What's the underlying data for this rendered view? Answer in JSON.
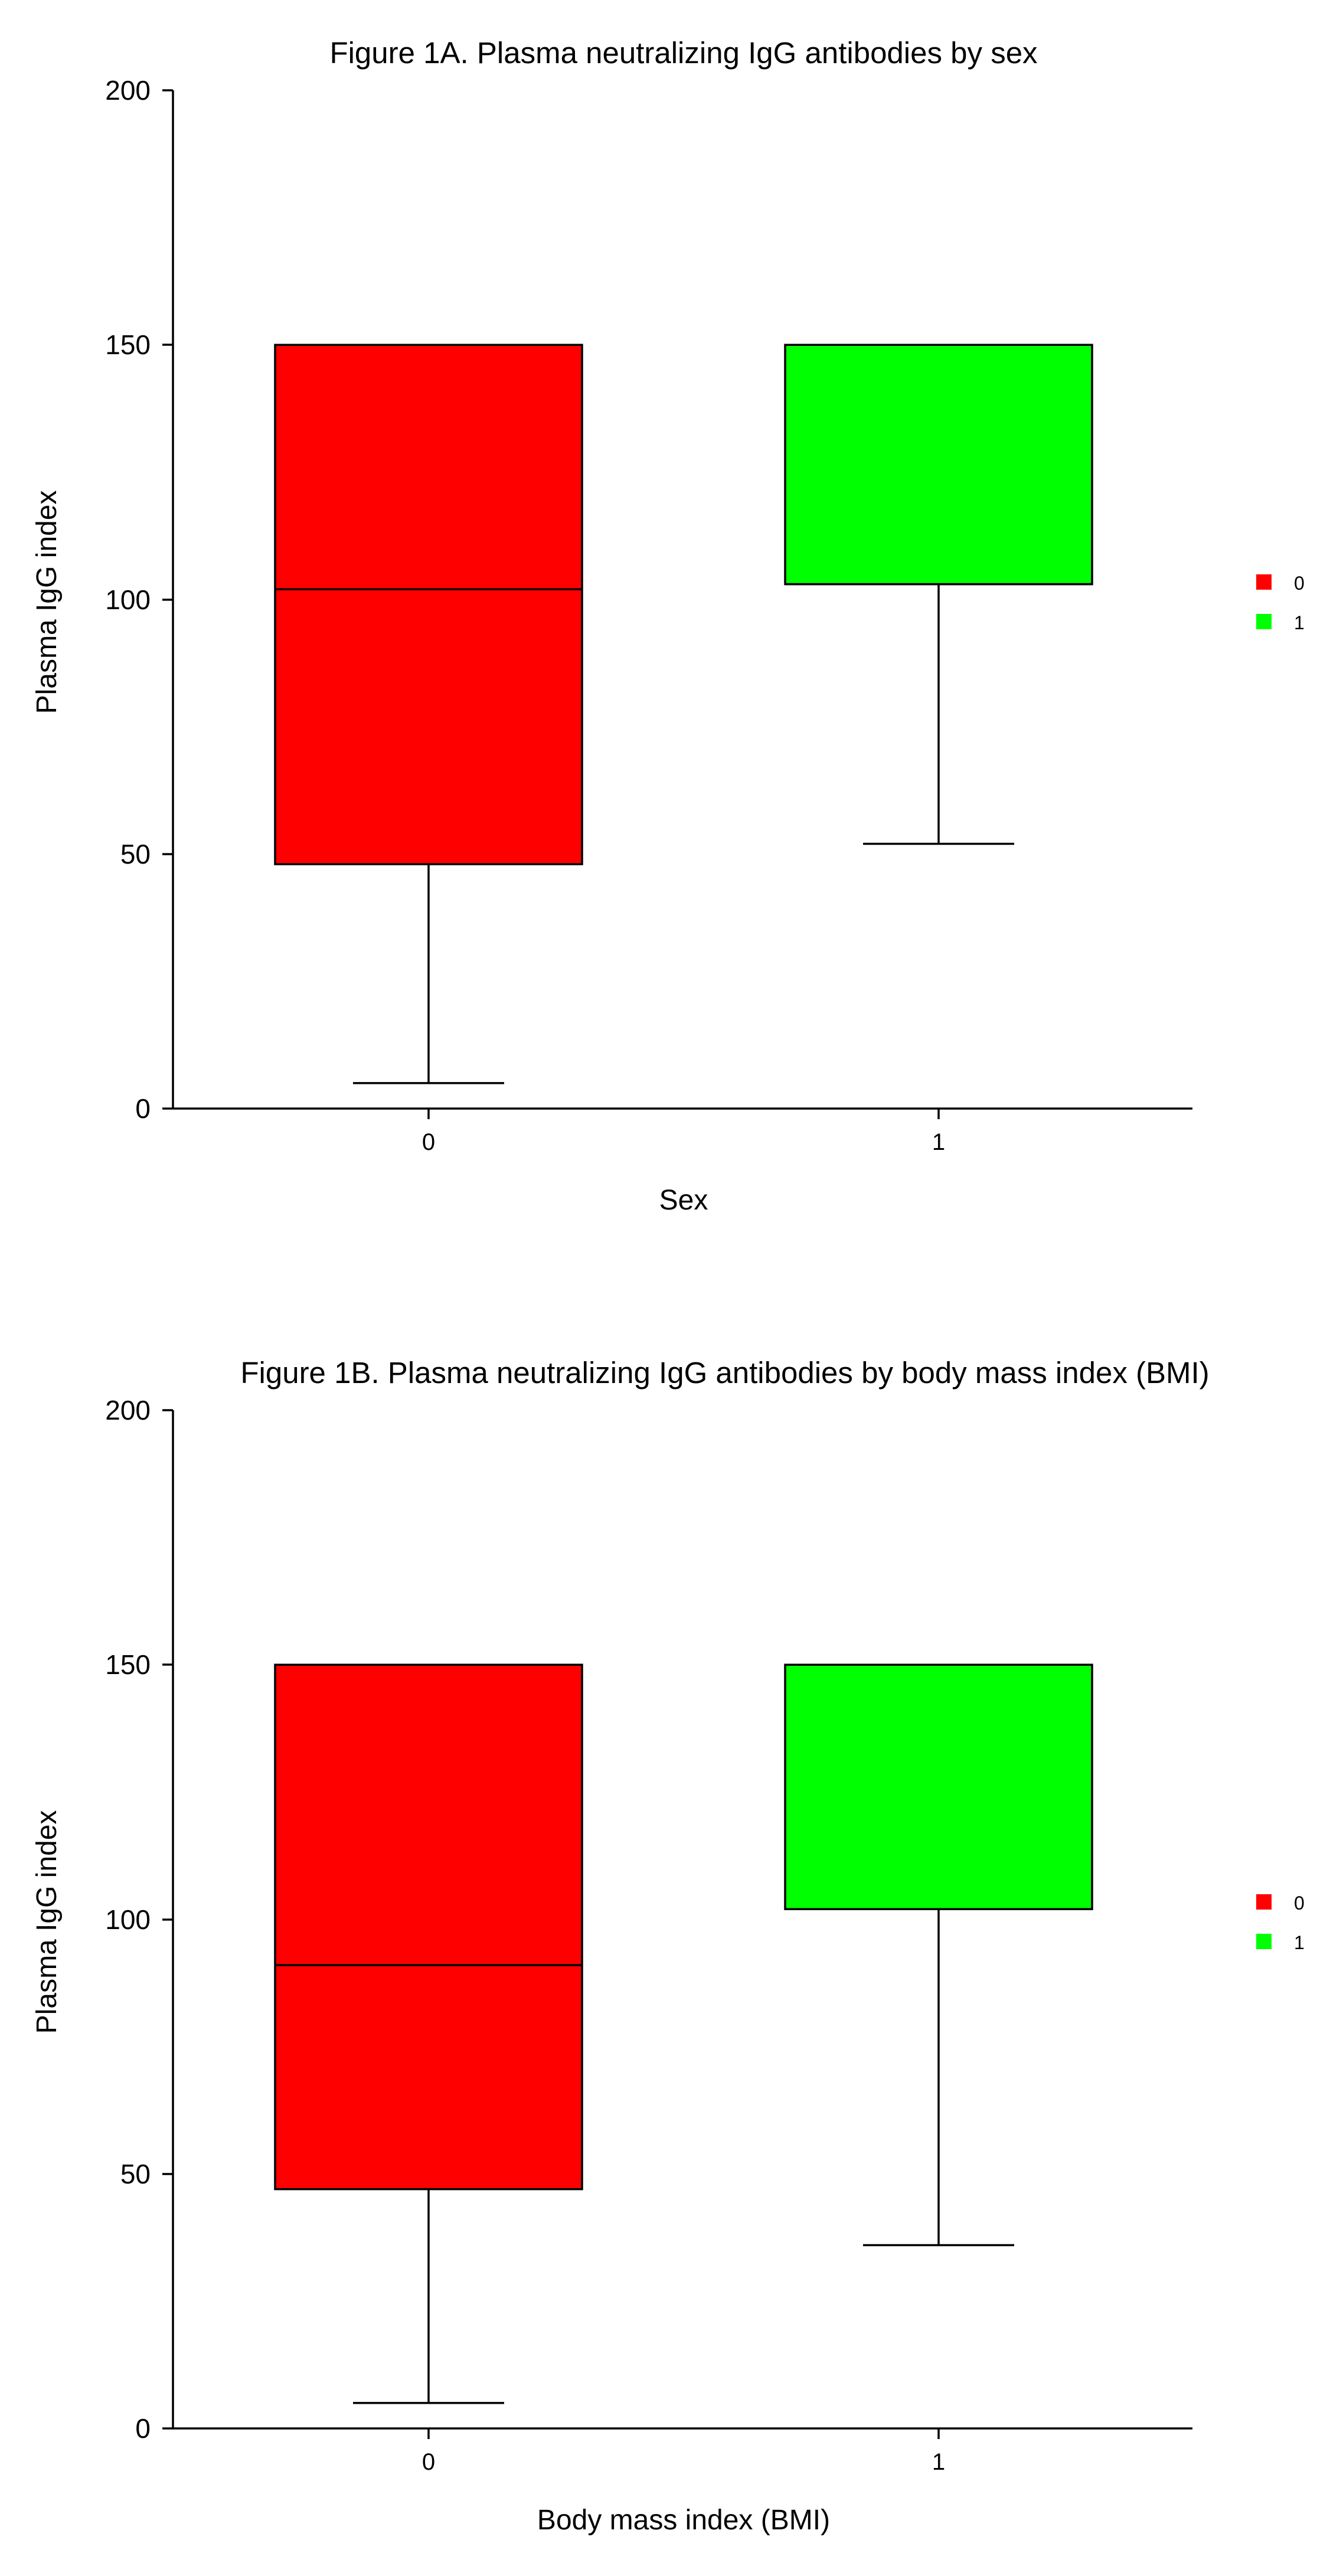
{
  "chart_data": [
    {
      "type": "box",
      "title": "Figure 1A. Plasma neutralizing IgG antibodies by sex",
      "xlabel": "Sex",
      "ylabel": "Plasma IgG index",
      "ylim": [
        0,
        200
      ],
      "yticks": [
        "0",
        "50",
        "100",
        "150",
        "200"
      ],
      "categories": [
        "0",
        "1"
      ],
      "colors": [
        "#ff0000",
        "#00ff00"
      ],
      "boxes": [
        {
          "category": "0",
          "whisker_low": 5,
          "q1": 48,
          "median": 102,
          "q3": 150,
          "whisker_high": 150
        },
        {
          "category": "1",
          "whisker_low": 52,
          "q1": 103,
          "median": 103,
          "q3": 150,
          "whisker_high": 150
        }
      ],
      "legend": {
        "placement": "right",
        "entries": [
          "0",
          "1"
        ]
      },
      "grid": false
    },
    {
      "type": "box",
      "title": "Figure 1B. Plasma neutralizing IgG antibodies by body mass index (BMI)",
      "xlabel": "Body mass index (BMI)",
      "ylabel": "Plasma IgG index",
      "ylim": [
        0,
        200
      ],
      "yticks": [
        "0",
        "50",
        "100",
        "150",
        "200"
      ],
      "categories": [
        "0",
        "1"
      ],
      "colors": [
        "#ff0000",
        "#00ff00"
      ],
      "boxes": [
        {
          "category": "0",
          "whisker_low": 5,
          "q1": 47,
          "median": 91,
          "q3": 150,
          "whisker_high": 150
        },
        {
          "category": "1",
          "whisker_low": 36,
          "q1": 102,
          "median": 102,
          "q3": 150,
          "whisker_high": 150
        }
      ],
      "legend": {
        "placement": "right",
        "entries": [
          "0",
          "1"
        ]
      },
      "grid": false
    }
  ]
}
